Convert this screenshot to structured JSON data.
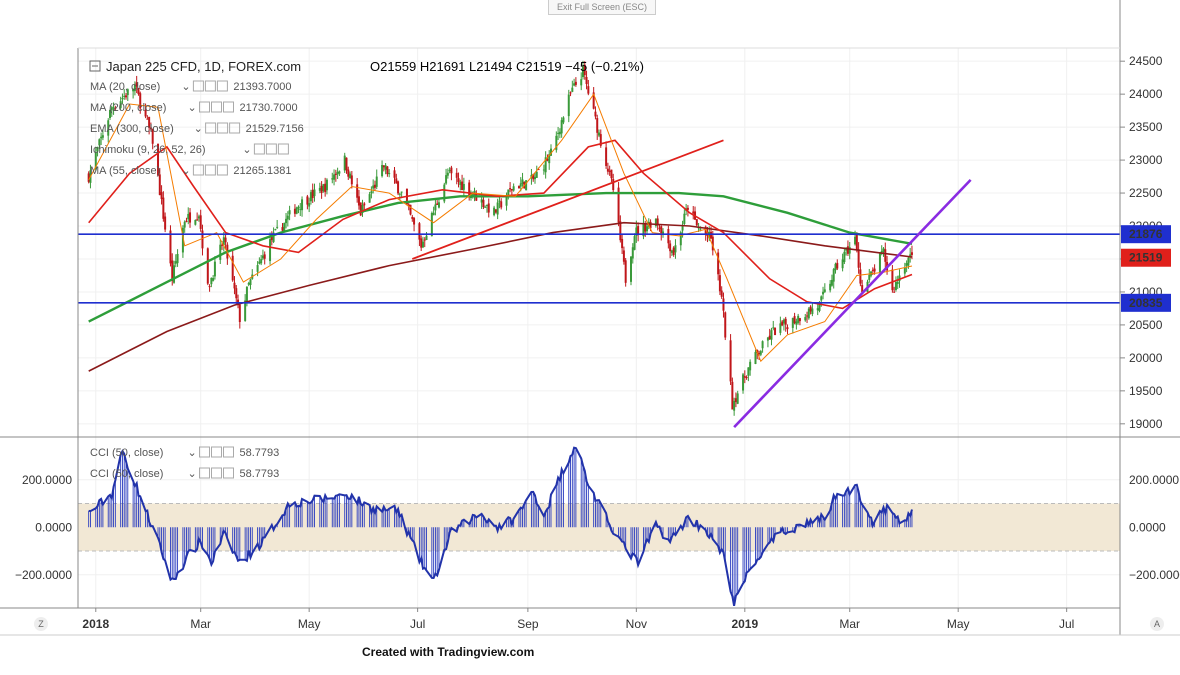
{
  "ui": {
    "exit_fullscreen": "Exit Full Screen (ESC)",
    "credit": "Created with Tradingview.com",
    "corner_left": "Z",
    "corner_right": "A"
  },
  "header": {
    "symbol": "Japan 225 CFD, 1D, FOREX.com",
    "ohlc": "O21559  H21691  L21494  C21519  −45 (−0.21%)"
  },
  "indicators": [
    {
      "label": "MA (20, close)",
      "value": "21393.7000",
      "color": "#f57c00"
    },
    {
      "label": "MA (200, close)",
      "value": "21730.7000",
      "color": "#2e9e3a"
    },
    {
      "label": "EMA (300, close)",
      "value": "21529.7156",
      "color": "#8b1a1a"
    },
    {
      "label": "Ichimoku (9, 26, 52, 26)",
      "value": "",
      "color": "#999999"
    },
    {
      "label": "MA (55, close)",
      "value": "21265.1381",
      "color": "#e0201b"
    }
  ],
  "cci_legends": [
    {
      "label": "CCI (50, close)",
      "value": "58.7793",
      "color": "#2233aa"
    },
    {
      "label": "CCI (50, close)",
      "value": "58.7793",
      "color": "#2233aa"
    }
  ],
  "chart_data": {
    "type": "line",
    "price_axis": {
      "ticks": [
        "24500",
        "24000",
        "23500",
        "23000",
        "22500",
        "22000",
        "21500",
        "21000",
        "20500",
        "20000",
        "19500",
        "19000"
      ],
      "range": [
        18800,
        24700
      ]
    },
    "price_labels": [
      {
        "text": "21876",
        "value": 21876,
        "color": "#1f2fcf"
      },
      {
        "text": "21519",
        "value": 21519,
        "color": "#e0201b"
      },
      {
        "text": "20835",
        "value": 20835,
        "color": "#1f2fcf"
      }
    ],
    "horizontal_lines": [
      21876,
      20835
    ],
    "x_axis": {
      "ticks": [
        "2018",
        "Mar",
        "May",
        "Jul",
        "Sep",
        "Nov",
        "2019",
        "Mar",
        "May",
        "Jul"
      ]
    },
    "cci_axis": {
      "ticks": [
        "200.0000",
        "0.0000",
        "−200.0000"
      ],
      "range": [
        -340,
        380
      ],
      "band": [
        -100,
        100
      ]
    },
    "price_anchors": [
      [
        "2017-12-28",
        22760
      ],
      [
        "2018-01-10",
        23800
      ],
      [
        "2018-01-23",
        24120
      ],
      [
        "2018-02-02",
        23300
      ],
      [
        "2018-02-13",
        21200
      ],
      [
        "2018-02-20",
        22100
      ],
      [
        "2018-02-28",
        22200
      ],
      [
        "2018-03-05",
        21050
      ],
      [
        "2018-03-14",
        21800
      ],
      [
        "2018-03-23",
        20600
      ],
      [
        "2018-03-28",
        21100
      ],
      [
        "2018-04-10",
        21800
      ],
      [
        "2018-04-24",
        22300
      ],
      [
        "2018-05-10",
        22600
      ],
      [
        "2018-05-21",
        23000
      ],
      [
        "2018-05-30",
        22200
      ],
      [
        "2018-06-12",
        22900
      ],
      [
        "2018-06-22",
        22500
      ],
      [
        "2018-07-03",
        21700
      ],
      [
        "2018-07-18",
        22800
      ],
      [
        "2018-08-01",
        22500
      ],
      [
        "2018-08-13",
        22200
      ],
      [
        "2018-08-24",
        22600
      ],
      [
        "2018-09-04",
        22700
      ],
      [
        "2018-09-14",
        23100
      ],
      [
        "2018-09-25",
        24000
      ],
      [
        "2018-10-02",
        24350
      ],
      [
        "2018-10-10",
        23500
      ],
      [
        "2018-10-19",
        22550
      ],
      [
        "2018-10-26",
        21200
      ],
      [
        "2018-10-31",
        21900
      ],
      [
        "2018-11-12",
        22100
      ],
      [
        "2018-11-22",
        21600
      ],
      [
        "2018-11-30",
        22300
      ],
      [
        "2018-12-05",
        22000
      ],
      [
        "2018-12-13",
        21800
      ],
      [
        "2018-12-19",
        20900
      ],
      [
        "2018-12-25",
        19300
      ],
      [
        "2019-01-04",
        19900
      ],
      [
        "2019-01-17",
        20400
      ],
      [
        "2019-01-30",
        20600
      ],
      [
        "2019-02-12",
        20800
      ],
      [
        "2019-02-22",
        21400
      ],
      [
        "2019-03-04",
        21800
      ],
      [
        "2019-03-08",
        21000
      ],
      [
        "2019-03-20",
        21600
      ],
      [
        "2019-03-25",
        21000
      ],
      [
        "2019-04-02",
        21500
      ],
      [
        "2019-04-05",
        21519
      ]
    ],
    "cci_anchors": [
      [
        "2017-12-28",
        60
      ],
      [
        "2018-01-10",
        140
      ],
      [
        "2018-01-16",
        320
      ],
      [
        "2018-01-25",
        150
      ],
      [
        "2018-02-06",
        -80
      ],
      [
        "2018-02-13",
        -230
      ],
      [
        "2018-02-22",
        -120
      ],
      [
        "2018-03-01",
        -60
      ],
      [
        "2018-03-07",
        -150
      ],
      [
        "2018-03-14",
        -30
      ],
      [
        "2018-03-23",
        -150
      ],
      [
        "2018-04-05",
        -60
      ],
      [
        "2018-04-20",
        100
      ],
      [
        "2018-05-10",
        120
      ],
      [
        "2018-05-22",
        140
      ],
      [
        "2018-06-05",
        80
      ],
      [
        "2018-06-20",
        70
      ],
      [
        "2018-07-03",
        -150
      ],
      [
        "2018-07-10",
        -230
      ],
      [
        "2018-07-20",
        -20
      ],
      [
        "2018-08-05",
        60
      ],
      [
        "2018-08-15",
        0
      ],
      [
        "2018-08-25",
        40
      ],
      [
        "2018-09-04",
        150
      ],
      [
        "2018-09-10",
        50
      ],
      [
        "2018-09-20",
        230
      ],
      [
        "2018-09-28",
        350
      ],
      [
        "2018-10-05",
        180
      ],
      [
        "2018-10-15",
        40
      ],
      [
        "2018-10-25",
        -80
      ],
      [
        "2018-11-02",
        -150
      ],
      [
        "2018-11-12",
        10
      ],
      [
        "2018-11-20",
        -60
      ],
      [
        "2018-11-30",
        40
      ],
      [
        "2018-12-10",
        -10
      ],
      [
        "2018-12-20",
        -120
      ],
      [
        "2018-12-26",
        -320
      ],
      [
        "2019-01-05",
        -160
      ],
      [
        "2019-01-20",
        -30
      ],
      [
        "2019-02-05",
        20
      ],
      [
        "2019-02-15",
        40
      ],
      [
        "2019-02-22",
        150
      ],
      [
        "2019-03-05",
        160
      ],
      [
        "2019-03-14",
        20
      ],
      [
        "2019-03-22",
        80
      ],
      [
        "2019-03-29",
        20
      ],
      [
        "2019-04-05",
        59
      ]
    ],
    "ma20_anchors": [
      [
        "2017-12-28",
        22700
      ],
      [
        "2018-01-20",
        23850
      ],
      [
        "2018-02-05",
        23800
      ],
      [
        "2018-02-20",
        21700
      ],
      [
        "2018-03-10",
        21900
      ],
      [
        "2018-03-25",
        21150
      ],
      [
        "2018-04-15",
        21500
      ],
      [
        "2018-05-05",
        22100
      ],
      [
        "2018-05-25",
        22600
      ],
      [
        "2018-06-15",
        22500
      ],
      [
        "2018-07-10",
        22050
      ],
      [
        "2018-08-01",
        22500
      ],
      [
        "2018-08-25",
        22450
      ],
      [
        "2018-09-20",
        23300
      ],
      [
        "2018-10-08",
        24000
      ],
      [
        "2018-10-25",
        22800
      ],
      [
        "2018-11-10",
        21900
      ],
      [
        "2018-11-25",
        21850
      ],
      [
        "2018-12-10",
        21950
      ],
      [
        "2018-12-22",
        21200
      ],
      [
        "2019-01-10",
        19950
      ],
      [
        "2019-01-25",
        20350
      ],
      [
        "2019-02-15",
        20550
      ],
      [
        "2019-03-05",
        21250
      ],
      [
        "2019-03-20",
        21300
      ],
      [
        "2019-04-05",
        21394
      ]
    ],
    "ma55_anchors": [
      [
        "2017-12-28",
        22050
      ],
      [
        "2018-01-20",
        22800
      ],
      [
        "2018-02-10",
        23200
      ],
      [
        "2018-02-25",
        22600
      ],
      [
        "2018-03-15",
        21900
      ],
      [
        "2018-04-05",
        21700
      ],
      [
        "2018-04-25",
        21600
      ],
      [
        "2018-05-20",
        22100
      ],
      [
        "2018-06-15",
        22400
      ],
      [
        "2018-07-15",
        22550
      ],
      [
        "2018-08-15",
        22450
      ],
      [
        "2018-09-10",
        22500
      ],
      [
        "2018-10-05",
        23200
      ],
      [
        "2018-10-20",
        23300
      ],
      [
        "2018-11-05",
        22800
      ],
      [
        "2018-12-01",
        22200
      ],
      [
        "2018-12-20",
        21900
      ],
      [
        "2019-01-15",
        21200
      ],
      [
        "2019-02-05",
        20850
      ],
      [
        "2019-02-25",
        20750
      ],
      [
        "2019-03-15",
        21050
      ],
      [
        "2019-04-05",
        21265
      ]
    ],
    "ma200_anchors": [
      [
        "2017-12-28",
        20550
      ],
      [
        "2018-02-10",
        21150
      ],
      [
        "2018-03-15",
        21600
      ],
      [
        "2018-04-15",
        21900
      ],
      [
        "2018-05-20",
        22150
      ],
      [
        "2018-06-20",
        22350
      ],
      [
        "2018-07-25",
        22450
      ],
      [
        "2018-09-01",
        22450
      ],
      [
        "2018-10-15",
        22500
      ],
      [
        "2018-11-25",
        22500
      ],
      [
        "2018-12-20",
        22450
      ],
      [
        "2019-01-25",
        22200
      ],
      [
        "2019-03-01",
        21900
      ],
      [
        "2019-04-05",
        21731
      ]
    ],
    "ema300_anchors": [
      [
        "2017-12-28",
        19800
      ],
      [
        "2018-02-10",
        20400
      ],
      [
        "2018-03-20",
        20800
      ],
      [
        "2018-05-01",
        21100
      ],
      [
        "2018-06-15",
        21400
      ],
      [
        "2018-08-01",
        21650
      ],
      [
        "2018-09-15",
        21900
      ],
      [
        "2018-10-25",
        22050
      ],
      [
        "2018-12-01",
        22000
      ],
      [
        "2019-01-10",
        21850
      ],
      [
        "2019-02-15",
        21700
      ],
      [
        "2019-04-05",
        21530
      ]
    ],
    "trendlines": [
      {
        "name": "rising-red",
        "color": "#e0201b",
        "from": [
          "2018-06-28",
          21500
        ],
        "to": [
          "2018-12-20",
          23300
        ]
      },
      {
        "name": "support-purple",
        "color": "#8a2be2",
        "from": [
          "2018-12-26",
          18950
        ],
        "to": [
          "2019-05-08",
          22700
        ]
      }
    ]
  }
}
